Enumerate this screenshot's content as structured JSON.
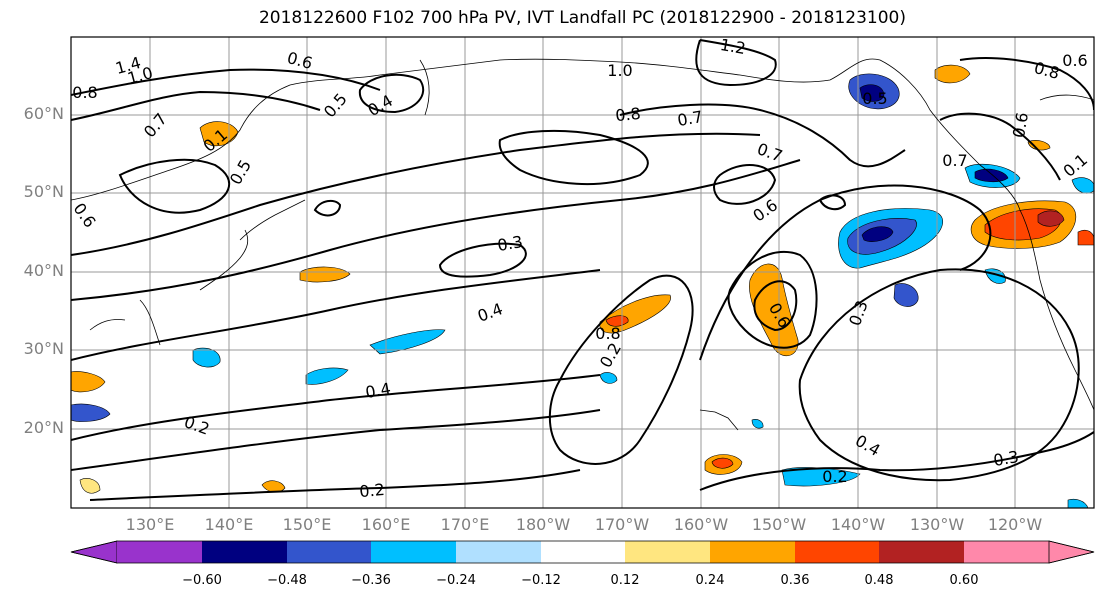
{
  "title": "2018122600 F102 700 hPa PV, IVT Landfall PC (2018122900 - 2018123100)",
  "latitude_labels": [
    "60°N",
    "50°N",
    "40°N",
    "30°N",
    "20°N"
  ],
  "longitude_labels": [
    "130°E",
    "140°E",
    "150°E",
    "160°E",
    "170°E",
    "180°W",
    "170°W",
    "160°W",
    "150°W",
    "140°W",
    "130°W",
    "120°W"
  ],
  "colorbar": {
    "tick_labels": [
      "−0.60",
      "−0.48",
      "−0.36",
      "−0.24",
      "−0.12",
      "0.12",
      "0.24",
      "0.36",
      "0.48",
      "0.60"
    ],
    "colors": [
      "#9933cc",
      "#000080",
      "#3355cc",
      "#00bfff",
      "#b0e0ff",
      "#ffffff",
      "#ffe680",
      "#ffa500",
      "#ff4500",
      "#b22222",
      "#ff88aa"
    ]
  },
  "contour_labels": [
    "1.4",
    "1.0",
    "0.8",
    "0.6",
    "0.5",
    "0.4",
    "0.7",
    "0.1",
    "0.5",
    "0.6",
    "0.7",
    "0.8",
    "1.2",
    "1.0",
    "0.7",
    "0.8",
    "0.6",
    "0.3",
    "0.4",
    "0.2",
    "0.6",
    "0.3",
    "0.4",
    "0.2",
    "0.2",
    "0.4",
    "0.3",
    "0.2",
    "0.5",
    "0.7",
    "0.6",
    "0.8",
    "0.6",
    "0.1"
  ]
}
